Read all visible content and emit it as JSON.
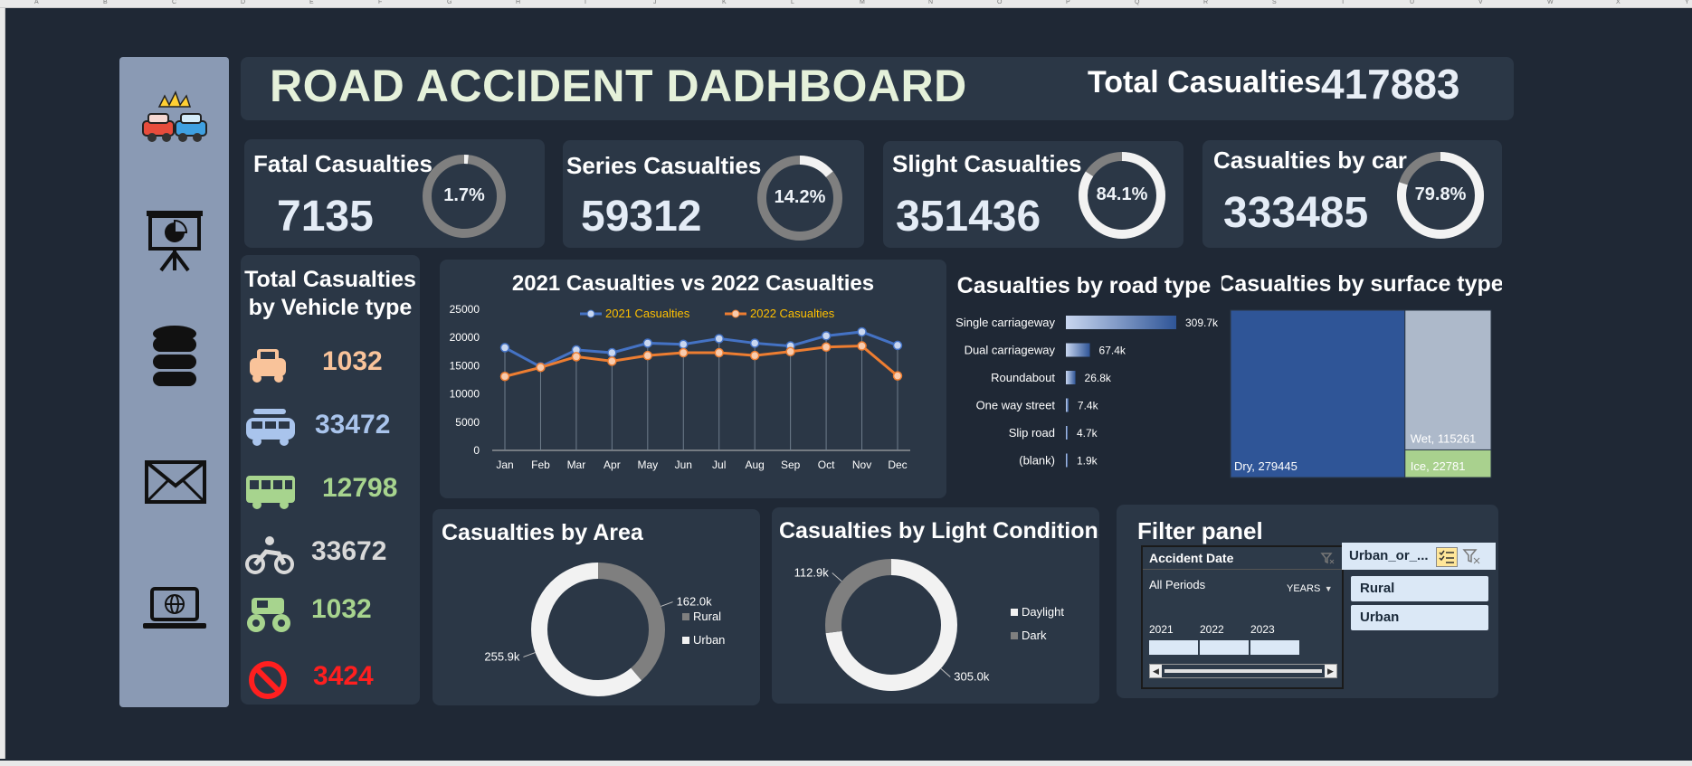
{
  "column_letters": [
    "A",
    "B",
    "C",
    "D",
    "E",
    "F",
    "G",
    "H",
    "I",
    "J",
    "K",
    "L",
    "M",
    "N",
    "O",
    "P",
    "Q",
    "R",
    "S",
    "T",
    "U",
    "V",
    "W",
    "X",
    "Y"
  ],
  "sidebar": {
    "items": [
      {
        "icon": "car-crash-icon"
      },
      {
        "icon": "presentation-chart-icon"
      },
      {
        "icon": "database-icon"
      },
      {
        "icon": "envelope-icon"
      },
      {
        "icon": "laptop-globe-icon"
      }
    ]
  },
  "header": {
    "title": "ROAD ACCIDENT DADHBOARD",
    "total_label": "Total Casualties",
    "total_value": "417883"
  },
  "kpis": [
    {
      "label": "Fatal Casualties",
      "value": "7135",
      "pct_label": "1.7%",
      "pct": 0.017
    },
    {
      "label": "Series Casualties",
      "value": "59312",
      "pct_label": "14.2%",
      "pct": 0.142
    },
    {
      "label": "Slight Casualties",
      "value": "351436",
      "pct_label": "84.1%",
      "pct": 0.841
    },
    {
      "label": "Casualties by car",
      "value": "333485",
      "pct_label": "79.8%",
      "pct": 0.798
    }
  ],
  "vehicle": {
    "title_line1": "Total Casualties",
    "title_line2": "by Vehicle type",
    "items": [
      {
        "icon": "taxi-icon",
        "value": "1032",
        "color": "#f9c39a"
      },
      {
        "icon": "van-icon",
        "value": "33472",
        "color": "#a9c4ec"
      },
      {
        "icon": "bus-icon",
        "value": "12798",
        "color": "#a7d48e"
      },
      {
        "icon": "motorbike-icon",
        "value": "33672",
        "color": "#d9d9d9"
      },
      {
        "icon": "monster-truck-icon",
        "value": "1032",
        "color": "#a7d48e"
      },
      {
        "icon": "no-entry-icon",
        "value": "3424",
        "color": "#ff1f1f"
      }
    ]
  },
  "colors": {
    "blue_series": "#4472c4",
    "orange_series": "#ed7d31",
    "legend_text": "#ffc000",
    "panel": "#2b3746",
    "bg": "#1f2835"
  },
  "chart_data": [
    {
      "type": "line",
      "title": "2021 Casualties vs 2022 Casualties",
      "categories": [
        "Jan",
        "Feb",
        "Mar",
        "Apr",
        "May",
        "Jun",
        "Jul",
        "Aug",
        "Sep",
        "Oct",
        "Nov",
        "Dec"
      ],
      "series": [
        {
          "name": "2021 Casualties",
          "values": [
            18200,
            14800,
            17800,
            17300,
            19000,
            18800,
            19800,
            19000,
            18500,
            20300,
            21000,
            18600
          ]
        },
        {
          "name": "2022 Casualties",
          "values": [
            13100,
            14700,
            16600,
            15800,
            16800,
            17300,
            17300,
            16800,
            17500,
            18300,
            18500,
            13200
          ]
        }
      ],
      "ylim": [
        0,
        25000
      ],
      "yticks": [
        "0",
        "5000",
        "10000",
        "15000",
        "20000",
        "25000"
      ],
      "grid": "vertical drop lines",
      "legend": "top"
    },
    {
      "type": "bar",
      "title": "Casualties by road type",
      "categories": [
        "Single carriageway",
        "Dual carriageway",
        "Roundabout",
        "One way street",
        "Slip road",
        "(blank)"
      ],
      "values": [
        309700,
        67400,
        26800,
        7400,
        4700,
        1900
      ],
      "labels": [
        "309.7k",
        "67.4k",
        "26.8k",
        "7.4k",
        "4.7k",
        "1.9k"
      ],
      "orientation": "horizontal"
    },
    {
      "type": "treemap",
      "title": "Casualties by surface type",
      "items": [
        {
          "name": "Dry",
          "value": 279445,
          "label": "Dry, 279445",
          "color": "#2f5597"
        },
        {
          "name": "Wet",
          "value": 115261,
          "label": "Wet, 115261",
          "color": "#adb9ca"
        },
        {
          "name": "Ice",
          "value": 22781,
          "label": "Ice, 22781",
          "color": "#a9d18e"
        }
      ]
    },
    {
      "type": "pie",
      "title": "Casualties by Area",
      "slices": [
        {
          "name": "Rural",
          "value": 162000,
          "label": "162.0k",
          "color": "#7f7f7f"
        },
        {
          "name": "Urban",
          "value": 255900,
          "label": "255.9k",
          "color": "#f2f2f2"
        }
      ],
      "legend": "right"
    },
    {
      "type": "pie",
      "title": "Casualties by Light Conditions",
      "slices": [
        {
          "name": "Daylight",
          "value": 305000,
          "label": "305.0k",
          "color": "#f2f2f2"
        },
        {
          "name": "Dark",
          "value": 112900,
          "label": "112.9k",
          "color": "#7f7f7f"
        }
      ],
      "legend": "right"
    }
  ],
  "filter": {
    "title": "Filter panel",
    "date_slicer": {
      "header": "Accident Date",
      "period": "All Periods",
      "level": "YEARS",
      "years": [
        "2021",
        "2022",
        "2023"
      ]
    },
    "area_slicer": {
      "header": "Urban_or_...",
      "options": [
        "Rural",
        "Urban"
      ]
    }
  }
}
